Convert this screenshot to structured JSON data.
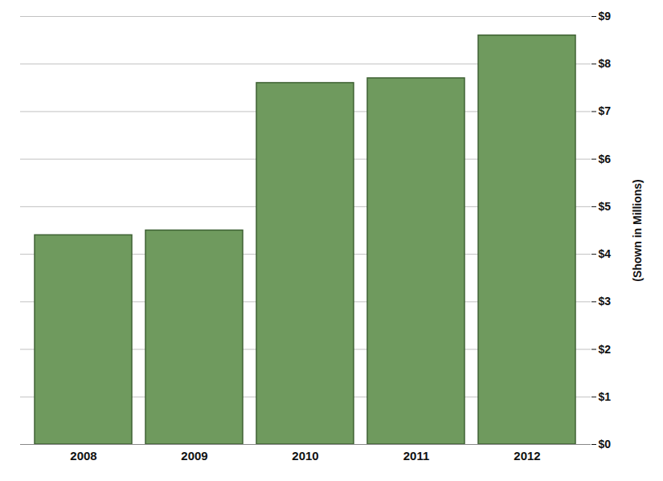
{
  "chart_data": {
    "type": "bar",
    "categories": [
      "2008",
      "2009",
      "2010",
      "2011",
      "2012"
    ],
    "values": [
      4.4,
      4.5,
      7.6,
      7.7,
      8.6
    ],
    "color": "#6f9a5e",
    "ylim": [
      0,
      9
    ],
    "yticks": [
      {
        "value": 0,
        "label": "$0"
      },
      {
        "value": 1,
        "label": "$1"
      },
      {
        "value": 2,
        "label": "$2"
      },
      {
        "value": 3,
        "label": "$3"
      },
      {
        "value": 4,
        "label": "$4"
      },
      {
        "value": 5,
        "label": "$5"
      },
      {
        "value": 6,
        "label": "$6"
      },
      {
        "value": 7,
        "label": "$7"
      },
      {
        "value": 8,
        "label": "$8"
      },
      {
        "value": 9,
        "label": "$9"
      }
    ],
    "y_label": "(Shown in Millions)",
    "grid": true
  }
}
